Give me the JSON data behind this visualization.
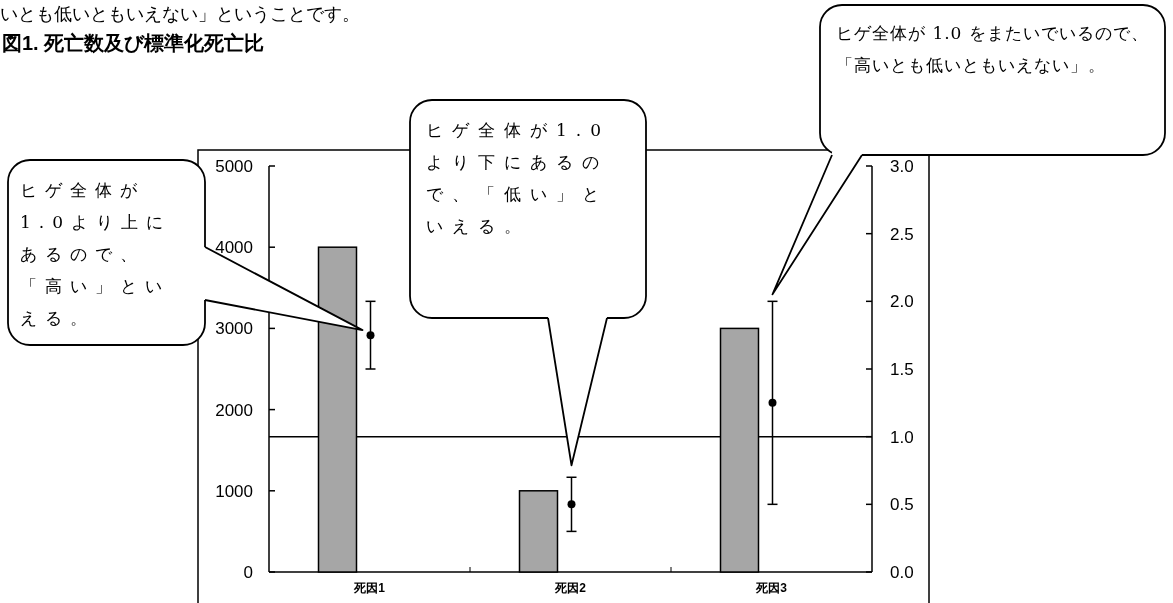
{
  "chart_data": {
    "type": "bar",
    "title": "図1. 死亡数及び標準化死亡比",
    "categories": [
      "死因1",
      "死因2",
      "死因3"
    ],
    "series": [
      {
        "color": "#a6a6a6",
        "values": [
          4000,
          1000,
          3000
        ]
      },
      {
        "type": "scatter",
        "axis": "y2",
        "color": "#000000",
        "values": [
          1.75,
          0.5,
          1.25
        ],
        "errors": [
          [
            1.5,
            2.0
          ],
          [
            0.3,
            0.7
          ],
          [
            0.5,
            2.0
          ]
        ]
      }
    ],
    "ylim": [
      0,
      5000
    ],
    "yticks": [
      0,
      1000,
      2000,
      3000,
      4000,
      5000
    ],
    "y2lim": [
      0,
      3.0
    ],
    "y2ticks": [
      {
        "value": 0,
        "label": "0.0"
      },
      {
        "value": 0.5,
        "label": "0.5"
      },
      {
        "value": 1.0,
        "label": "1.0"
      },
      {
        "value": 1.5,
        "label": "1.5"
      },
      {
        "value": 2.0,
        "label": "2.0"
      },
      {
        "value": 2.5,
        "label": "2.5"
      },
      {
        "value": 3.0,
        "label": "3.0"
      }
    ],
    "ref_lines": [
      {
        "axis": "y2",
        "value": 1.0,
        "color": "#000000"
      }
    ],
    "marker": "circle",
    "grid": false,
    "annotations": [
      "いとも低いともいえない」ということです。",
      "ヒゲ全体が1.0より上にあるので、「高い」といえる。",
      "ヒゲ全体が1.0より下にあるので、「低い」といえる。",
      "ヒゲ全体が 1.0 をまたいでいるので、「高いとも低いともいえない」。"
    ]
  }
}
